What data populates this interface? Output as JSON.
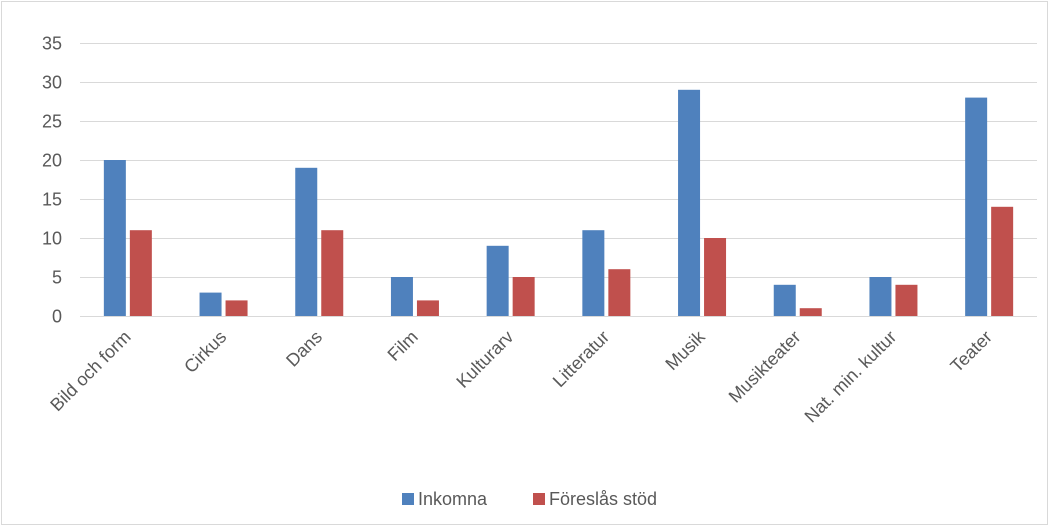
{
  "chart_data": {
    "type": "bar",
    "categories": [
      "Bild och form",
      "Cirkus",
      "Dans",
      "Film",
      "Kulturarv",
      "Litteratur",
      "Musik",
      "Musikteater",
      "Nat. min. kultur",
      "Teater"
    ],
    "series": [
      {
        "name": "Inkomna",
        "values": [
          20,
          3,
          19,
          5,
          9,
          11,
          29,
          4,
          5,
          28
        ],
        "color": "#4f81bd"
      },
      {
        "name": "Föreslås stöd",
        "values": [
          11,
          2,
          11,
          2,
          5,
          6,
          10,
          1,
          4,
          14
        ],
        "color": "#c0504d"
      }
    ],
    "yticks": [
      0,
      5,
      10,
      15,
      20,
      25,
      30,
      35
    ],
    "ylim": [
      0,
      35
    ],
    "grid": true,
    "legend_position": "bottom",
    "gridline_color": "#d9d9d9"
  }
}
